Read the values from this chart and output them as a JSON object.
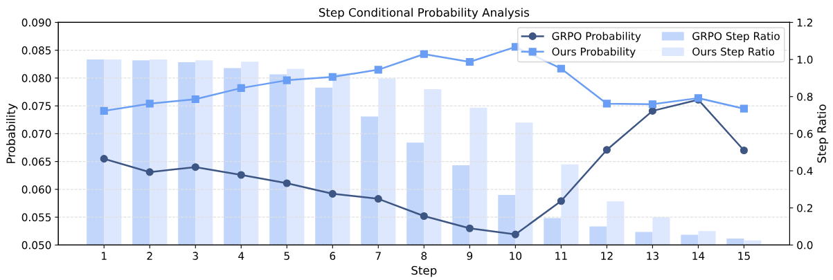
{
  "chart_data": {
    "type": "line",
    "title": "Step Conditional Probability Analysis",
    "xlabel": "Step",
    "ylabel": "Probability",
    "y2label": "Step Ratio",
    "categories": [
      "1",
      "2",
      "3",
      "4",
      "5",
      "6",
      "7",
      "8",
      "9",
      "10",
      "11",
      "12",
      "13",
      "14",
      "15"
    ],
    "series": [
      {
        "name": "GRPO Step Ratio",
        "type": "bar",
        "axis": "y2",
        "color": "#c2d6fc",
        "values": [
          1.0,
          0.996,
          0.985,
          0.954,
          0.92,
          0.848,
          0.693,
          0.552,
          0.43,
          0.27,
          0.145,
          0.1,
          0.07,
          0.055,
          0.035
        ]
      },
      {
        "name": "Ours Step Ratio",
        "type": "bar",
        "axis": "y2",
        "color": "#dde7fd",
        "values": [
          1.0,
          1.0,
          0.996,
          0.988,
          0.95,
          0.924,
          0.898,
          0.84,
          0.74,
          0.66,
          0.435,
          0.235,
          0.15,
          0.075,
          0.025
        ]
      },
      {
        "name": "GRPO Probability",
        "marker": "circle",
        "color": "#3d5683",
        "values": [
          0.0655,
          0.0631,
          0.064,
          0.0626,
          0.0611,
          0.0592,
          0.0583,
          0.0552,
          0.053,
          0.0519,
          0.0579,
          0.0671,
          0.0741,
          0.0761,
          0.067
        ]
      },
      {
        "name": "Ours Probability",
        "marker": "square",
        "color": "#6a9ef5",
        "values": [
          0.0741,
          0.0754,
          0.0762,
          0.0782,
          0.0796,
          0.0802,
          0.0815,
          0.0843,
          0.0829,
          0.0856,
          0.0817,
          0.0754,
          0.0753,
          0.0764,
          0.0745
        ]
      }
    ],
    "ylim": [
      0.05,
      0.09
    ],
    "yticks": [
      {
        "value": 0.05,
        "label": "0.050"
      },
      {
        "value": 0.055,
        "label": "0.055"
      },
      {
        "value": 0.06,
        "label": "0.060"
      },
      {
        "value": 0.065,
        "label": "0.065"
      },
      {
        "value": 0.07,
        "label": "0.070"
      },
      {
        "value": 0.075,
        "label": "0.075"
      },
      {
        "value": 0.08,
        "label": "0.080"
      },
      {
        "value": 0.085,
        "label": "0.085"
      },
      {
        "value": 0.09,
        "label": "0.090"
      }
    ],
    "y2lim": [
      0,
      1.2
    ],
    "y2ticks": [
      {
        "value": 0,
        "label": "0.0"
      },
      {
        "value": 0.2,
        "label": "0.2"
      },
      {
        "value": 0.4,
        "label": "0.4"
      },
      {
        "value": 0.6,
        "label": "0.6"
      },
      {
        "value": 0.8,
        "label": "0.8"
      },
      {
        "value": 1.0,
        "label": "1.0"
      },
      {
        "value": 1.2,
        "label": "1.2"
      }
    ],
    "grid": "y",
    "legend": "top right",
    "line_style": "solid"
  }
}
